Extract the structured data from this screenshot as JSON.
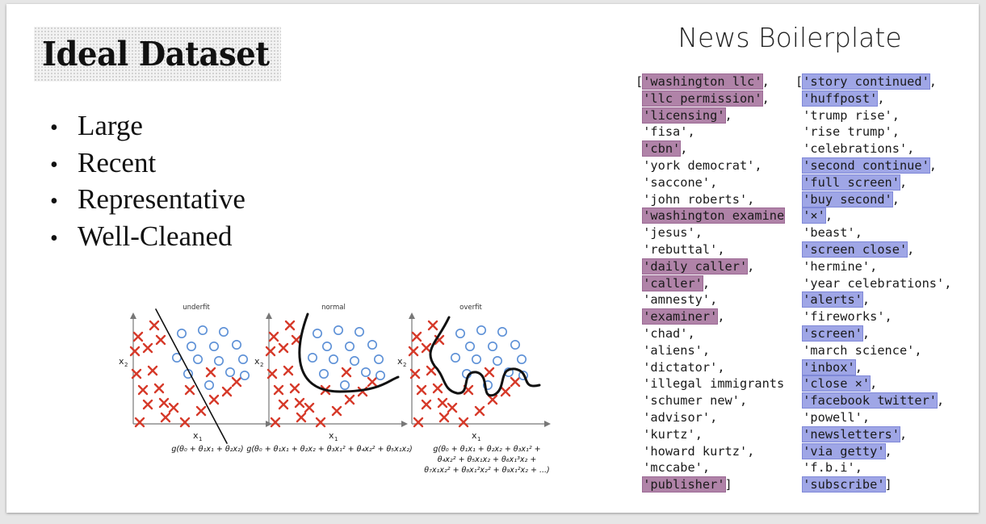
{
  "title": "Ideal Dataset",
  "bullets": [
    "Large",
    "Recent",
    "Representative",
    "Well-Cleaned"
  ],
  "figure": {
    "panel_titles": [
      "underfit",
      "normal",
      "overfit"
    ],
    "axis_x": "x",
    "axis_x_sub": "1",
    "axis_y": "x",
    "axis_y_sub": "2",
    "formulas": [
      [
        "g(θ₀ + θ₁x₁ + θ₂x₂)"
      ],
      [
        "g(θ₀ + θ₁x₁ + θ₂x₂ + θ₃x₁² + θ₄x₂² + θ₅x₁x₂)"
      ],
      [
        "g(θ₀ + θ₁x₁ + θ₂x₂ + θ₃x₁² +",
        "θ₄x₂² + θ₅x₁x₂ + θ₆x₁³x₂ +",
        "θ₇x₁x₂² + θ₈x₁²x₂² + θ₉x₁²x₂ + ...)"
      ]
    ],
    "colors": {
      "cross": "#d63a2a",
      "circle": "#5b8fd6",
      "boundary": "#111111"
    }
  },
  "boilerplate": {
    "heading": "News Boilerplate",
    "colors": {
      "left_highlight": "#b083a8",
      "right_highlight": "#9fa6e6"
    },
    "left": [
      {
        "open": "[",
        "token": "'washington llc'",
        "suffix": ",",
        "hl": true
      },
      {
        "open": "",
        "token": "'llc permission'",
        "suffix": ",",
        "hl": true
      },
      {
        "open": "",
        "token": "'licensing'",
        "suffix": ",",
        "hl": true
      },
      {
        "open": "",
        "token": "'fisa'",
        "suffix": ",",
        "hl": false
      },
      {
        "open": "",
        "token": "'cbn'",
        "suffix": ",",
        "hl": true
      },
      {
        "open": "",
        "token": "'york democrat'",
        "suffix": ",",
        "hl": false
      },
      {
        "open": "",
        "token": "'saccone'",
        "suffix": ",",
        "hl": false
      },
      {
        "open": "",
        "token": "'john roberts'",
        "suffix": ",",
        "hl": false
      },
      {
        "open": "",
        "token": "'washington examine",
        "suffix": "",
        "hl": true
      },
      {
        "open": "",
        "token": "'jesus'",
        "suffix": ",",
        "hl": false
      },
      {
        "open": "",
        "token": "'rebuttal'",
        "suffix": ",",
        "hl": false
      },
      {
        "open": "",
        "token": "'daily caller'",
        "suffix": ",",
        "hl": true
      },
      {
        "open": "",
        "token": "'caller'",
        "suffix": ",",
        "hl": true
      },
      {
        "open": "",
        "token": "'amnesty'",
        "suffix": ",",
        "hl": false
      },
      {
        "open": "",
        "token": "'examiner'",
        "suffix": ",",
        "hl": true
      },
      {
        "open": "",
        "token": "'chad'",
        "suffix": ",",
        "hl": false
      },
      {
        "open": "",
        "token": "'aliens'",
        "suffix": ",",
        "hl": false
      },
      {
        "open": "",
        "token": "'dictator'",
        "suffix": ",",
        "hl": false
      },
      {
        "open": "",
        "token": "'illegal immigrants",
        "suffix": "",
        "hl": false
      },
      {
        "open": "",
        "token": "'schumer new'",
        "suffix": ",",
        "hl": false
      },
      {
        "open": "",
        "token": "'advisor'",
        "suffix": ",",
        "hl": false
      },
      {
        "open": "",
        "token": "'kurtz'",
        "suffix": ",",
        "hl": false
      },
      {
        "open": "",
        "token": "'howard kurtz'",
        "suffix": ",",
        "hl": false
      },
      {
        "open": "",
        "token": "'mccabe'",
        "suffix": ",",
        "hl": false
      },
      {
        "open": "",
        "token": "'publisher'",
        "suffix": "]",
        "hl": true
      }
    ],
    "right": [
      {
        "open": "[",
        "token": "'story continued'",
        "suffix": ",",
        "hl": true
      },
      {
        "open": "",
        "token": "'huffpost'",
        "suffix": ",",
        "hl": true
      },
      {
        "open": "",
        "token": "'trump rise'",
        "suffix": ",",
        "hl": false
      },
      {
        "open": "",
        "token": "'rise trump'",
        "suffix": ",",
        "hl": false
      },
      {
        "open": "",
        "token": "'celebrations'",
        "suffix": ",",
        "hl": false
      },
      {
        "open": "",
        "token": "'second continue'",
        "suffix": ",",
        "hl": true
      },
      {
        "open": "",
        "token": "'full screen'",
        "suffix": ",",
        "hl": true
      },
      {
        "open": "",
        "token": "'buy second'",
        "suffix": ",",
        "hl": true
      },
      {
        "open": "",
        "token": "'×'",
        "suffix": ",",
        "hl": true
      },
      {
        "open": "",
        "token": "'beast'",
        "suffix": ",",
        "hl": false
      },
      {
        "open": "",
        "token": "'screen close'",
        "suffix": ",",
        "hl": true
      },
      {
        "open": "",
        "token": "'hermine'",
        "suffix": ",",
        "hl": false
      },
      {
        "open": "",
        "token": "'year celebrations'",
        "suffix": ",",
        "hl": false
      },
      {
        "open": "",
        "token": "'alerts'",
        "suffix": ",",
        "hl": true
      },
      {
        "open": "",
        "token": "'fireworks'",
        "suffix": ",",
        "hl": false
      },
      {
        "open": "",
        "token": "'screen'",
        "suffix": ",",
        "hl": true
      },
      {
        "open": "",
        "token": "'march science'",
        "suffix": ",",
        "hl": false
      },
      {
        "open": "",
        "token": "'inbox'",
        "suffix": ",",
        "hl": true
      },
      {
        "open": "",
        "token": "'close ×'",
        "suffix": ",",
        "hl": true
      },
      {
        "open": "",
        "token": "'facebook twitter'",
        "suffix": ",",
        "hl": true
      },
      {
        "open": "",
        "token": "'powell'",
        "suffix": ",",
        "hl": false
      },
      {
        "open": "",
        "token": "'newsletters'",
        "suffix": ",",
        "hl": true
      },
      {
        "open": "",
        "token": "'via getty'",
        "suffix": ",",
        "hl": true
      },
      {
        "open": "",
        "token": "'f.b.i'",
        "suffix": ",",
        "hl": false
      },
      {
        "open": "",
        "token": "'subscribe'",
        "suffix": "]",
        "hl": true
      }
    ]
  }
}
